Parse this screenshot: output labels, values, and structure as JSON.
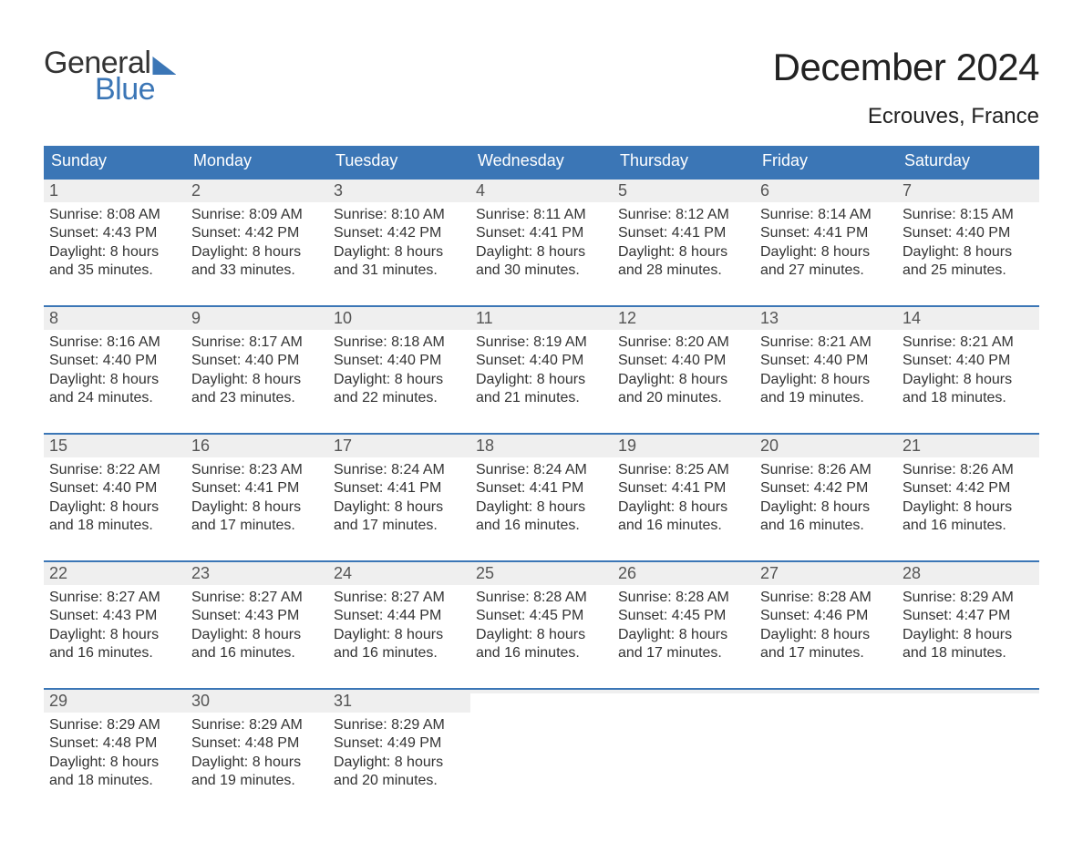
{
  "brand": {
    "word1": "General",
    "word2": "Blue"
  },
  "title": "December 2024",
  "location": "Ecrouves, France",
  "colors": {
    "header_bg": "#3b76b6",
    "header_text": "#ffffff",
    "daynum_bg": "#efefef",
    "daynum_text": "#555555",
    "body_text": "#333333",
    "divider": "#3b76b6",
    "page_bg": "#ffffff"
  },
  "typography": {
    "title_fontsize": 42,
    "location_fontsize": 24,
    "weekday_fontsize": 18,
    "daynum_fontsize": 18,
    "body_fontsize": 16
  },
  "weekdays": [
    "Sunday",
    "Monday",
    "Tuesday",
    "Wednesday",
    "Thursday",
    "Friday",
    "Saturday"
  ],
  "weeks": [
    [
      {
        "n": "1",
        "sunrise": "Sunrise: 8:08 AM",
        "sunset": "Sunset: 4:43 PM",
        "d1": "Daylight: 8 hours",
        "d2": "and 35 minutes."
      },
      {
        "n": "2",
        "sunrise": "Sunrise: 8:09 AM",
        "sunset": "Sunset: 4:42 PM",
        "d1": "Daylight: 8 hours",
        "d2": "and 33 minutes."
      },
      {
        "n": "3",
        "sunrise": "Sunrise: 8:10 AM",
        "sunset": "Sunset: 4:42 PM",
        "d1": "Daylight: 8 hours",
        "d2": "and 31 minutes."
      },
      {
        "n": "4",
        "sunrise": "Sunrise: 8:11 AM",
        "sunset": "Sunset: 4:41 PM",
        "d1": "Daylight: 8 hours",
        "d2": "and 30 minutes."
      },
      {
        "n": "5",
        "sunrise": "Sunrise: 8:12 AM",
        "sunset": "Sunset: 4:41 PM",
        "d1": "Daylight: 8 hours",
        "d2": "and 28 minutes."
      },
      {
        "n": "6",
        "sunrise": "Sunrise: 8:14 AM",
        "sunset": "Sunset: 4:41 PM",
        "d1": "Daylight: 8 hours",
        "d2": "and 27 minutes."
      },
      {
        "n": "7",
        "sunrise": "Sunrise: 8:15 AM",
        "sunset": "Sunset: 4:40 PM",
        "d1": "Daylight: 8 hours",
        "d2": "and 25 minutes."
      }
    ],
    [
      {
        "n": "8",
        "sunrise": "Sunrise: 8:16 AM",
        "sunset": "Sunset: 4:40 PM",
        "d1": "Daylight: 8 hours",
        "d2": "and 24 minutes."
      },
      {
        "n": "9",
        "sunrise": "Sunrise: 8:17 AM",
        "sunset": "Sunset: 4:40 PM",
        "d1": "Daylight: 8 hours",
        "d2": "and 23 minutes."
      },
      {
        "n": "10",
        "sunrise": "Sunrise: 8:18 AM",
        "sunset": "Sunset: 4:40 PM",
        "d1": "Daylight: 8 hours",
        "d2": "and 22 minutes."
      },
      {
        "n": "11",
        "sunrise": "Sunrise: 8:19 AM",
        "sunset": "Sunset: 4:40 PM",
        "d1": "Daylight: 8 hours",
        "d2": "and 21 minutes."
      },
      {
        "n": "12",
        "sunrise": "Sunrise: 8:20 AM",
        "sunset": "Sunset: 4:40 PM",
        "d1": "Daylight: 8 hours",
        "d2": "and 20 minutes."
      },
      {
        "n": "13",
        "sunrise": "Sunrise: 8:21 AM",
        "sunset": "Sunset: 4:40 PM",
        "d1": "Daylight: 8 hours",
        "d2": "and 19 minutes."
      },
      {
        "n": "14",
        "sunrise": "Sunrise: 8:21 AM",
        "sunset": "Sunset: 4:40 PM",
        "d1": "Daylight: 8 hours",
        "d2": "and 18 minutes."
      }
    ],
    [
      {
        "n": "15",
        "sunrise": "Sunrise: 8:22 AM",
        "sunset": "Sunset: 4:40 PM",
        "d1": "Daylight: 8 hours",
        "d2": "and 18 minutes."
      },
      {
        "n": "16",
        "sunrise": "Sunrise: 8:23 AM",
        "sunset": "Sunset: 4:41 PM",
        "d1": "Daylight: 8 hours",
        "d2": "and 17 minutes."
      },
      {
        "n": "17",
        "sunrise": "Sunrise: 8:24 AM",
        "sunset": "Sunset: 4:41 PM",
        "d1": "Daylight: 8 hours",
        "d2": "and 17 minutes."
      },
      {
        "n": "18",
        "sunrise": "Sunrise: 8:24 AM",
        "sunset": "Sunset: 4:41 PM",
        "d1": "Daylight: 8 hours",
        "d2": "and 16 minutes."
      },
      {
        "n": "19",
        "sunrise": "Sunrise: 8:25 AM",
        "sunset": "Sunset: 4:41 PM",
        "d1": "Daylight: 8 hours",
        "d2": "and 16 minutes."
      },
      {
        "n": "20",
        "sunrise": "Sunrise: 8:26 AM",
        "sunset": "Sunset: 4:42 PM",
        "d1": "Daylight: 8 hours",
        "d2": "and 16 minutes."
      },
      {
        "n": "21",
        "sunrise": "Sunrise: 8:26 AM",
        "sunset": "Sunset: 4:42 PM",
        "d1": "Daylight: 8 hours",
        "d2": "and 16 minutes."
      }
    ],
    [
      {
        "n": "22",
        "sunrise": "Sunrise: 8:27 AM",
        "sunset": "Sunset: 4:43 PM",
        "d1": "Daylight: 8 hours",
        "d2": "and 16 minutes."
      },
      {
        "n": "23",
        "sunrise": "Sunrise: 8:27 AM",
        "sunset": "Sunset: 4:43 PM",
        "d1": "Daylight: 8 hours",
        "d2": "and 16 minutes."
      },
      {
        "n": "24",
        "sunrise": "Sunrise: 8:27 AM",
        "sunset": "Sunset: 4:44 PM",
        "d1": "Daylight: 8 hours",
        "d2": "and 16 minutes."
      },
      {
        "n": "25",
        "sunrise": "Sunrise: 8:28 AM",
        "sunset": "Sunset: 4:45 PM",
        "d1": "Daylight: 8 hours",
        "d2": "and 16 minutes."
      },
      {
        "n": "26",
        "sunrise": "Sunrise: 8:28 AM",
        "sunset": "Sunset: 4:45 PM",
        "d1": "Daylight: 8 hours",
        "d2": "and 17 minutes."
      },
      {
        "n": "27",
        "sunrise": "Sunrise: 8:28 AM",
        "sunset": "Sunset: 4:46 PM",
        "d1": "Daylight: 8 hours",
        "d2": "and 17 minutes."
      },
      {
        "n": "28",
        "sunrise": "Sunrise: 8:29 AM",
        "sunset": "Sunset: 4:47 PM",
        "d1": "Daylight: 8 hours",
        "d2": "and 18 minutes."
      }
    ],
    [
      {
        "n": "29",
        "sunrise": "Sunrise: 8:29 AM",
        "sunset": "Sunset: 4:48 PM",
        "d1": "Daylight: 8 hours",
        "d2": "and 18 minutes."
      },
      {
        "n": "30",
        "sunrise": "Sunrise: 8:29 AM",
        "sunset": "Sunset: 4:48 PM",
        "d1": "Daylight: 8 hours",
        "d2": "and 19 minutes."
      },
      {
        "n": "31",
        "sunrise": "Sunrise: 8:29 AM",
        "sunset": "Sunset: 4:49 PM",
        "d1": "Daylight: 8 hours",
        "d2": "and 20 minutes."
      },
      {
        "empty": true
      },
      {
        "empty": true
      },
      {
        "empty": true
      },
      {
        "empty": true
      }
    ]
  ]
}
